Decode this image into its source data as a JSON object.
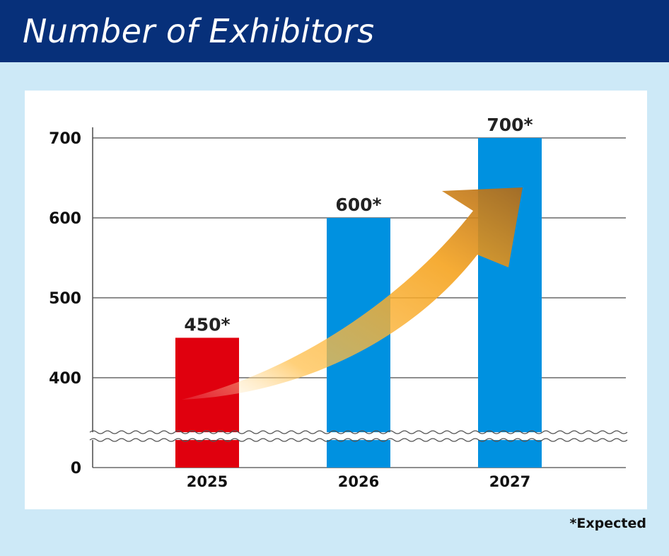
{
  "header": {
    "title": "Number of Exhibitors"
  },
  "footnote": "*Expected",
  "colors": {
    "header_bg": "#07307a",
    "background": "#cde9f7",
    "bar_2025": "#e0000e",
    "bar_projected": "#0091e0",
    "arrow": "#f5a623"
  },
  "chart_data": {
    "type": "bar",
    "title": "Number of Exhibitors",
    "categories": [
      "2025",
      "2026",
      "2027"
    ],
    "values": [
      450,
      600,
      700
    ],
    "data_labels": [
      "450*",
      "600*",
      "700*"
    ],
    "y_ticks": [
      "0",
      "400",
      "500",
      "600",
      "700"
    ],
    "ylim": [
      0,
      700
    ],
    "axis_break": "between 0 and 400",
    "grid": true,
    "annotation": "upward growth arrow from 2025 to 2027"
  }
}
